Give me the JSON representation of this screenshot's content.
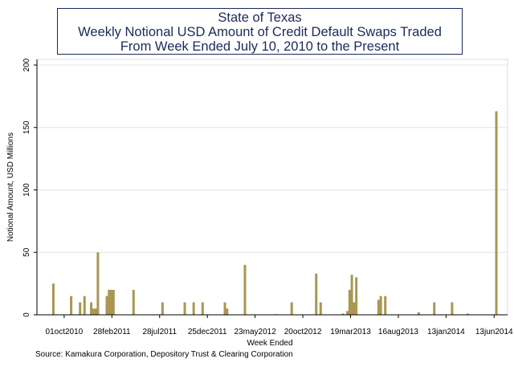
{
  "chart_data": {
    "type": "bar",
    "title": [
      "State of Texas",
      "Weekly Notional USD Amount of Credit Default Swaps Traded",
      "From Week Ended July 10, 2010 to the Present"
    ],
    "xlabel": "Week Ended",
    "ylabel": "Notional Amount, USD Millions",
    "ylim": [
      0,
      200
    ],
    "yticks": [
      0,
      50,
      100,
      150,
      200
    ],
    "xlim": [
      "2010-07-10",
      "2014-06-20"
    ],
    "xticks": [
      {
        "date": "2010-10-01",
        "label": "01oct2010"
      },
      {
        "date": "2011-02-28",
        "label": "28feb2011"
      },
      {
        "date": "2011-07-28",
        "label": "28jul2011"
      },
      {
        "date": "2011-12-25",
        "label": "25dec2011"
      },
      {
        "date": "2012-05-23",
        "label": "23may2012"
      },
      {
        "date": "2012-10-20",
        "label": "20oct2012"
      },
      {
        "date": "2013-03-19",
        "label": "19mar2013"
      },
      {
        "date": "2013-08-16",
        "label": "16aug2013"
      },
      {
        "date": "2014-01-13",
        "label": "13jan2014"
      },
      {
        "date": "2014-06-13",
        "label": "13jun2014"
      }
    ],
    "grid": true,
    "bar_color": "#a99752",
    "points": [
      {
        "date": "2010-08-28",
        "value": 25
      },
      {
        "date": "2010-10-23",
        "value": 15
      },
      {
        "date": "2010-11-20",
        "value": 10
      },
      {
        "date": "2010-12-04",
        "value": 15
      },
      {
        "date": "2010-12-25",
        "value": 10
      },
      {
        "date": "2011-01-01",
        "value": 5
      },
      {
        "date": "2011-01-08",
        "value": 5
      },
      {
        "date": "2011-01-15",
        "value": 50
      },
      {
        "date": "2011-02-12",
        "value": 15
      },
      {
        "date": "2011-02-19",
        "value": 20
      },
      {
        "date": "2011-02-26",
        "value": 20
      },
      {
        "date": "2011-03-05",
        "value": 20
      },
      {
        "date": "2011-05-07",
        "value": 20
      },
      {
        "date": "2011-08-06",
        "value": 10
      },
      {
        "date": "2011-10-15",
        "value": 10
      },
      {
        "date": "2011-11-12",
        "value": 10
      },
      {
        "date": "2011-12-10",
        "value": 10
      },
      {
        "date": "2012-02-18",
        "value": 10
      },
      {
        "date": "2012-02-25",
        "value": 5
      },
      {
        "date": "2012-04-21",
        "value": 40
      },
      {
        "date": "2012-07-28",
        "value": 0.5
      },
      {
        "date": "2012-09-15",
        "value": 10
      },
      {
        "date": "2012-12-01",
        "value": 33
      },
      {
        "date": "2012-12-15",
        "value": 10
      },
      {
        "date": "2013-02-23",
        "value": 1
      },
      {
        "date": "2013-03-09",
        "value": 3
      },
      {
        "date": "2013-03-16",
        "value": 20
      },
      {
        "date": "2013-03-23",
        "value": 32
      },
      {
        "date": "2013-03-30",
        "value": 10
      },
      {
        "date": "2013-04-06",
        "value": 30
      },
      {
        "date": "2013-06-15",
        "value": 12
      },
      {
        "date": "2013-06-22",
        "value": 15
      },
      {
        "date": "2013-07-06",
        "value": 15
      },
      {
        "date": "2013-10-19",
        "value": 2
      },
      {
        "date": "2013-12-07",
        "value": 10
      },
      {
        "date": "2014-02-01",
        "value": 10
      },
      {
        "date": "2014-03-22",
        "value": 1
      },
      {
        "date": "2014-06-20",
        "value": 163
      }
    ]
  },
  "footer": {
    "source": "Source: Kamakura Corporation, Depository Trust & Clearing Corporation"
  }
}
